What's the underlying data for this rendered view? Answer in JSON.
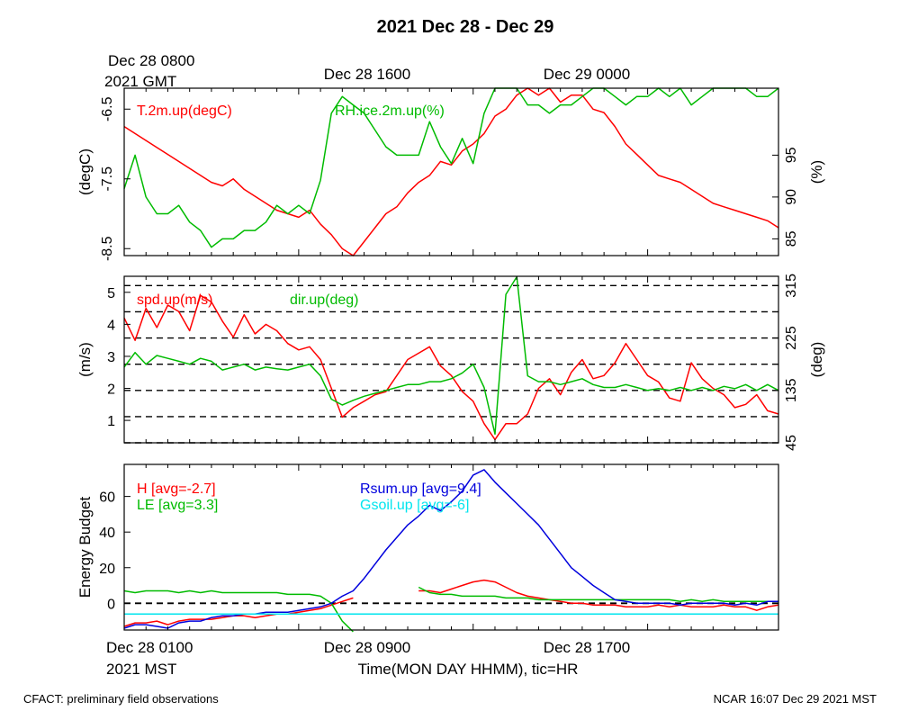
{
  "title": "2021 Dec 28 - Dec 29",
  "top_axis": {
    "date_line1": "Dec 28 0800",
    "date_line2": "2021 GMT",
    "tick_labels": [
      "Dec 28 1600",
      "Dec 29 0000"
    ]
  },
  "bottom_axis": {
    "date_line1": "Dec 28 0100",
    "date_line2": "2021 MST",
    "tick_labels": [
      "Dec 28 0900",
      "Dec 28 1700"
    ],
    "xlabel": "Time(MON DAY HHMM), tic=HR"
  },
  "footer": {
    "left": "CFACT: preliminary field observations",
    "right": "NCAR 16:07 Dec 29 2021 MST"
  },
  "colors": {
    "red": "#ff0000",
    "green": "#00bb00",
    "blue": "#0000dd",
    "cyan": "#00e5ee"
  },
  "chart_data": [
    {
      "type": "line",
      "x_unit": "hours since Dec 28 0100 MST",
      "xlim": [
        0,
        30
      ],
      "left_axis": {
        "label": "(degC)",
        "ylim": [
          -8.6,
          -6.2
        ],
        "ticks": [
          -6.5,
          -7.5,
          -8.5
        ]
      },
      "right_axis": {
        "label": "(%)",
        "ylim": [
          83,
          103
        ],
        "ticks": [
          85,
          90,
          95
        ]
      },
      "series": [
        {
          "name": "T.2m.up(degC)",
          "axis": "left",
          "color": "red",
          "x": [
            0,
            0.5,
            1,
            1.5,
            2,
            2.5,
            3,
            3.5,
            4,
            4.5,
            5,
            5.5,
            6,
            6.5,
            7,
            7.5,
            8,
            8.5,
            9,
            9.5,
            10,
            10.5,
            11,
            11.5,
            12,
            12.5,
            13,
            13.5,
            14,
            14.5,
            15,
            15.5,
            16,
            16.5,
            17,
            17.5,
            18,
            18.5,
            19,
            19.5,
            20,
            20.5,
            21,
            21.5,
            22,
            22.5,
            23,
            23.5,
            24,
            24.5,
            25,
            25.5,
            26,
            26.5,
            27,
            27.5,
            28,
            28.5,
            29,
            29.5,
            30
          ],
          "y": [
            -6.75,
            -6.85,
            -6.95,
            -7.05,
            -7.15,
            -7.25,
            -7.35,
            -7.45,
            -7.55,
            -7.6,
            -7.5,
            -7.65,
            -7.75,
            -7.85,
            -7.95,
            -8.0,
            -8.05,
            -7.95,
            -8.15,
            -8.3,
            -8.5,
            -8.6,
            -8.4,
            -8.2,
            -8.0,
            -7.9,
            -7.7,
            -7.55,
            -7.45,
            -7.25,
            -7.3,
            -7.1,
            -7.0,
            -6.85,
            -6.6,
            -6.5,
            -6.3,
            -6.2,
            -6.3,
            -6.2,
            -6.4,
            -6.3,
            -6.3,
            -6.5,
            -6.55,
            -6.75,
            -7.0,
            -7.15,
            -7.3,
            -7.45,
            -7.5,
            -7.55,
            -7.65,
            -7.75,
            -7.85,
            -7.9,
            -7.95,
            -8.0,
            -8.05,
            -8.1,
            -8.2
          ]
        },
        {
          "name": "RH.ice.2m.up(%)",
          "axis": "right",
          "color": "green",
          "x": [
            0,
            0.5,
            1,
            1.5,
            2,
            2.5,
            3,
            3.5,
            4,
            4.5,
            5,
            5.5,
            6,
            6.5,
            7,
            7.5,
            8,
            8.5,
            9,
            9.5,
            10,
            10.5,
            11,
            11.5,
            12,
            12.5,
            13,
            13.5,
            14,
            14.5,
            15,
            15.5,
            16,
            16.5,
            17,
            17.5,
            18,
            18.5,
            19,
            19.5,
            20,
            20.5,
            21,
            21.5,
            22,
            22.5,
            23,
            23.5,
            24,
            24.5,
            25,
            25.5,
            26,
            26.5,
            27,
            27.5,
            28,
            28.5,
            29,
            29.5,
            30
          ],
          "y": [
            91,
            95,
            90,
            88,
            88,
            89,
            87,
            86,
            84,
            85,
            85,
            86,
            86,
            87,
            89,
            88,
            89,
            88,
            92,
            100,
            102,
            101,
            100,
            98,
            96,
            95,
            95,
            95,
            99,
            96,
            94,
            97,
            94,
            100,
            103,
            103,
            103,
            101,
            101,
            100,
            101,
            101,
            102,
            103,
            103,
            102,
            101,
            102,
            102,
            103,
            102,
            103,
            101,
            102,
            103,
            103,
            103,
            103,
            102,
            102,
            103
          ]
        }
      ]
    },
    {
      "type": "line",
      "x_unit": "hours since Dec 28 0100 MST",
      "xlim": [
        0,
        30
      ],
      "left_axis": {
        "label": "(m/s)",
        "ylim": [
          0.3,
          5.5
        ],
        "ticks": [
          1,
          2,
          3,
          4,
          5
        ]
      },
      "right_axis": {
        "label": "(deg)",
        "ylim": [
          45,
          331
        ],
        "ticks": [
          45,
          135,
          225,
          315
        ]
      },
      "gridlines_right": [
        45,
        90,
        135,
        180,
        225,
        270,
        315
      ],
      "series": [
        {
          "name": "spd.up(m/s)",
          "axis": "left",
          "color": "red",
          "x": [
            0,
            0.5,
            1,
            1.5,
            2,
            2.5,
            3,
            3.5,
            4,
            4.5,
            5,
            5.5,
            6,
            6.5,
            7,
            7.5,
            8,
            8.5,
            9,
            9.5,
            10,
            10.5,
            11,
            11.5,
            12,
            12.5,
            13,
            13.5,
            14,
            14.5,
            15,
            15.5,
            16,
            16.5,
            17,
            17.5,
            18,
            18.5,
            19,
            19.5,
            20,
            20.5,
            21,
            21.5,
            22,
            22.5,
            23,
            23.5,
            24,
            24.5,
            25,
            25.5,
            26,
            26.5,
            27,
            27.5,
            28,
            28.5,
            29,
            29.5,
            30
          ],
          "y": [
            4.2,
            3.5,
            4.5,
            3.9,
            4.6,
            4.4,
            3.8,
            4.9,
            4.7,
            4.1,
            3.6,
            4.3,
            3.7,
            4.0,
            3.8,
            3.4,
            3.2,
            3.3,
            2.9,
            2.0,
            1.1,
            1.4,
            1.6,
            1.8,
            1.9,
            2.4,
            2.9,
            3.1,
            3.3,
            2.7,
            2.4,
            1.9,
            1.6,
            0.9,
            0.4,
            0.9,
            0.9,
            1.2,
            2.0,
            2.3,
            1.8,
            2.5,
            2.9,
            2.3,
            2.4,
            2.8,
            3.4,
            2.9,
            2.4,
            2.2,
            1.7,
            1.6,
            2.8,
            2.3,
            2.0,
            1.8,
            1.4,
            1.5,
            1.8,
            1.3,
            1.2
          ]
        },
        {
          "name": "dir.up(deg)",
          "axis": "right",
          "color": "green",
          "x": [
            0,
            0.5,
            1,
            1.5,
            2,
            2.5,
            3,
            3.5,
            4,
            4.5,
            5,
            5.5,
            6,
            6.5,
            7,
            7.5,
            8,
            8.5,
            9,
            9.5,
            10,
            10.5,
            11,
            11.5,
            12,
            12.5,
            13,
            13.5,
            14,
            14.5,
            15,
            15.5,
            16,
            16.5,
            17,
            17.5,
            18,
            18.5,
            19,
            19.5,
            20,
            20.5,
            21,
            21.5,
            22,
            22.5,
            23,
            23.5,
            24,
            24.5,
            25,
            25.5,
            26,
            26.5,
            27,
            27.5,
            28,
            28.5,
            29,
            29.5,
            30
          ],
          "y": [
            175,
            200,
            180,
            195,
            190,
            185,
            180,
            190,
            185,
            170,
            175,
            180,
            170,
            175,
            172,
            170,
            175,
            180,
            160,
            120,
            110,
            118,
            125,
            130,
            135,
            140,
            145,
            145,
            150,
            150,
            155,
            165,
            180,
            140,
            60,
            300,
            330,
            160,
            150,
            150,
            145,
            150,
            155,
            145,
            140,
            140,
            145,
            140,
            135,
            138,
            135,
            140,
            135,
            140,
            135,
            142,
            138,
            145,
            135,
            145,
            135
          ]
        }
      ]
    },
    {
      "type": "line",
      "x_unit": "hours since Dec 28 0100 MST",
      "xlim": [
        0,
        30
      ],
      "left_axis": {
        "label": "Energy Budget",
        "ylim": [
          -15,
          78
        ],
        "ticks": [
          0,
          20,
          40,
          60
        ]
      },
      "zero_line": true,
      "series": [
        {
          "name": "H [avg=-2.7]",
          "color": "red",
          "x": [
            0,
            0.5,
            1,
            1.5,
            2,
            2.5,
            3,
            3.5,
            4,
            4.5,
            5,
            5.5,
            6,
            6.5,
            7,
            7.5,
            8,
            8.5,
            9,
            9.5,
            10,
            10.5,
            11,
            11.5,
            12,
            12.5,
            13,
            13.5,
            14,
            14.5,
            15,
            15.5,
            16,
            16.5,
            17,
            17.5,
            18,
            18.5,
            19,
            19.5,
            20,
            20.5,
            21,
            21.5,
            22,
            22.5,
            23,
            23.5,
            24,
            24.5,
            25,
            25.5,
            26,
            26.5,
            27,
            27.5,
            28,
            28.5,
            29,
            29.5,
            30
          ],
          "y": [
            -13,
            -11,
            -11,
            -10,
            -12,
            -10,
            -9,
            -9,
            -9,
            -8,
            -7,
            -7,
            -8,
            -7,
            -6,
            -6,
            -5,
            -4,
            -3,
            -1,
            1,
            3,
            null,
            null,
            null,
            null,
            null,
            7,
            7,
            6,
            8,
            10,
            12,
            13,
            12,
            9,
            6,
            4,
            3,
            2,
            1,
            0,
            0,
            -1,
            -1,
            -1,
            -2,
            -2,
            -2,
            -1,
            -2,
            -1,
            -2,
            -2,
            -2,
            -1,
            -2,
            -2,
            -4,
            -2,
            -1
          ]
        },
        {
          "name": "LE [avg=3.3]",
          "color": "green",
          "x": [
            0,
            0.5,
            1,
            1.5,
            2,
            2.5,
            3,
            3.5,
            4,
            4.5,
            5,
            5.5,
            6,
            6.5,
            7,
            7.5,
            8,
            8.5,
            9,
            9.5,
            10,
            10.5,
            11,
            11.5,
            12,
            12.5,
            13,
            13.5,
            14,
            14.5,
            15,
            15.5,
            16,
            16.5,
            17,
            17.5,
            18,
            18.5,
            19,
            19.5,
            20,
            20.5,
            21,
            21.5,
            22,
            22.5,
            23,
            23.5,
            24,
            24.5,
            25,
            25.5,
            26,
            26.5,
            27,
            27.5,
            28,
            28.5,
            29,
            29.5,
            30
          ],
          "y": [
            7,
            6,
            7,
            7,
            7,
            6,
            7,
            6,
            7,
            6,
            6,
            6,
            6,
            6,
            6,
            5,
            5,
            5,
            4,
            0,
            -10,
            -16,
            null,
            null,
            null,
            null,
            null,
            9,
            6,
            5,
            5,
            4,
            4,
            4,
            4,
            3,
            3,
            3,
            2,
            2,
            2,
            2,
            2,
            2,
            2,
            2,
            2,
            2,
            2,
            2,
            2,
            1,
            2,
            1,
            2,
            1,
            1,
            1,
            1,
            1,
            1
          ]
        },
        {
          "name": "Rsum.up [avg=9.4]",
          "color": "blue",
          "x": [
            0,
            0.5,
            1,
            1.5,
            2,
            2.5,
            3,
            3.5,
            4,
            4.5,
            5,
            5.5,
            6,
            6.5,
            7,
            7.5,
            8,
            8.5,
            9,
            9.5,
            10,
            10.5,
            11,
            11.5,
            12,
            12.5,
            13,
            13.5,
            14,
            14.5,
            15,
            15.5,
            16,
            16.5,
            17,
            17.5,
            18,
            18.5,
            19,
            19.5,
            20,
            20.5,
            21,
            21.5,
            22,
            22.5,
            23,
            23.5,
            24,
            24.5,
            25,
            25.5,
            26,
            26.5,
            27,
            27.5,
            28,
            28.5,
            29,
            29.5,
            30
          ],
          "y": [
            -14,
            -12,
            -12,
            -13,
            -14,
            -11,
            -10,
            -10,
            -8,
            -7,
            -7,
            -6,
            -6,
            -5,
            -5,
            -5,
            -4,
            -3,
            -2,
            0,
            4,
            7,
            14,
            22,
            30,
            37,
            44,
            49,
            55,
            52,
            57,
            63,
            72,
            75,
            68,
            62,
            56,
            50,
            44,
            36,
            28,
            20,
            15,
            10,
            6,
            2,
            1,
            0,
            0,
            0,
            0,
            -1,
            0,
            0,
            0,
            0,
            -1,
            0,
            -1,
            1,
            1
          ]
        },
        {
          "name": "Gsoil.up [avg=-6]",
          "color": "cyan",
          "x": [
            0,
            30
          ],
          "y": [
            -6,
            -6
          ]
        }
      ]
    }
  ]
}
